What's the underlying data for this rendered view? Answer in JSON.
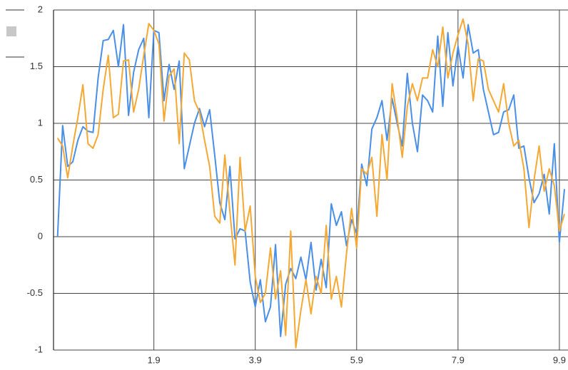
{
  "chart_data": {
    "type": "line",
    "x": [
      0,
      0.1,
      0.2,
      0.3,
      0.4,
      0.5,
      0.6,
      0.7,
      0.8,
      0.9,
      1,
      1.1,
      1.2,
      1.3,
      1.4,
      1.5,
      1.6,
      1.7,
      1.8,
      1.9,
      2,
      2.1,
      2.2,
      2.3,
      2.4,
      2.5,
      2.6,
      2.7,
      2.8,
      2.9,
      3,
      3.1,
      3.2,
      3.3,
      3.4,
      3.5,
      3.6,
      3.7,
      3.8,
      3.9,
      4,
      4.1,
      4.2,
      4.3,
      4.4,
      4.5,
      4.6,
      4.7,
      4.8,
      4.9,
      5,
      5.1,
      5.2,
      5.3,
      5.4,
      5.5,
      5.6,
      5.7,
      5.8,
      5.9,
      6,
      6.1,
      6.2,
      6.3,
      6.4,
      6.5,
      6.6,
      6.7,
      6.8,
      6.9,
      7,
      7.1,
      7.2,
      7.3,
      7.4,
      7.5,
      7.6,
      7.7,
      7.8,
      7.9,
      8,
      8.1,
      8.2,
      8.3,
      8.4,
      8.5,
      8.6,
      8.7,
      8.8,
      8.9,
      9,
      9.1,
      9.2,
      9.3,
      9.4,
      9.5,
      9.6,
      9.7,
      9.8,
      9.9,
      10
    ],
    "series": [
      {
        "color": "#4a8fe7",
        "values": [
          0.0,
          0.98,
          0.62,
          0.66,
          0.85,
          0.97,
          0.93,
          0.92,
          1.4,
          1.73,
          1.74,
          1.82,
          1.5,
          1.87,
          1.07,
          1.45,
          1.65,
          1.75,
          1.05,
          1.82,
          1.8,
          1.2,
          1.52,
          1.3,
          1.55,
          0.6,
          0.8,
          1.0,
          1.13,
          0.97,
          1.12,
          0.72,
          0.3,
          0.15,
          0.62,
          -0.02,
          0.07,
          0.05,
          -0.4,
          -0.62,
          -0.38,
          -0.75,
          -0.62,
          -0.07,
          -0.88,
          -0.42,
          -0.28,
          -0.37,
          -0.18,
          -0.38,
          -0.05,
          -0.47,
          -0.2,
          -0.45,
          0.29,
          0.1,
          0.22,
          -0.08,
          0.15,
          0.03,
          0.64,
          0.45,
          0.95,
          1.05,
          1.2,
          0.85,
          1.22,
          1.0,
          0.8,
          1.44,
          1.0,
          0.75,
          1.25,
          1.2,
          1.1,
          1.77,
          1.15,
          1.8,
          1.33,
          1.68,
          1.4,
          1.87,
          1.62,
          1.65,
          1.3,
          1.1,
          0.9,
          0.92,
          1.1,
          1.12,
          1.25,
          0.78,
          0.8,
          0.52,
          0.3,
          0.38,
          0.55,
          0.2,
          0.82,
          -0.05,
          0.42
        ]
      },
      {
        "color": "#f5a833",
        "values": [
          0.87,
          0.8,
          0.52,
          0.8,
          1.05,
          1.34,
          0.82,
          0.78,
          0.9,
          1.3,
          1.6,
          1.05,
          1.08,
          1.55,
          1.56,
          1.1,
          1.3,
          1.6,
          1.88,
          1.82,
          1.7,
          1.02,
          1.42,
          1.48,
          0.82,
          1.62,
          1.56,
          1.2,
          1.1,
          0.85,
          0.62,
          0.18,
          0.12,
          0.72,
          0.22,
          -0.25,
          0.7,
          0.05,
          0.27,
          -0.35,
          -0.58,
          -0.5,
          -0.1,
          -0.55,
          -0.3,
          -0.87,
          0.05,
          -0.98,
          -0.65,
          -0.38,
          -0.68,
          -0.35,
          -0.5,
          0.1,
          -0.55,
          -0.35,
          -0.62,
          -0.15,
          0.25,
          -0.1,
          0.6,
          0.55,
          0.7,
          0.18,
          0.9,
          0.5,
          1.35,
          1.05,
          0.7,
          1.15,
          1.35,
          1.2,
          1.4,
          1.4,
          1.65,
          1.5,
          1.85,
          1.4,
          1.62,
          1.78,
          1.92,
          1.7,
          1.2,
          1.57,
          1.55,
          1.3,
          1.2,
          1.1,
          1.35,
          1.0,
          0.8,
          0.85,
          0.6,
          0.08,
          0.5,
          0.8,
          0.4,
          0.6,
          0.45,
          0.05,
          0.2
        ]
      }
    ],
    "xlim": [
      -0.08,
      10.07
    ],
    "xticks": [
      1.9,
      3.9,
      5.9,
      7.9,
      9.9
    ],
    "ylim": [
      -1,
      2
    ],
    "yticks": [
      -1,
      -0.5,
      0,
      0.5,
      1,
      1.5,
      2
    ],
    "grid": true
  }
}
